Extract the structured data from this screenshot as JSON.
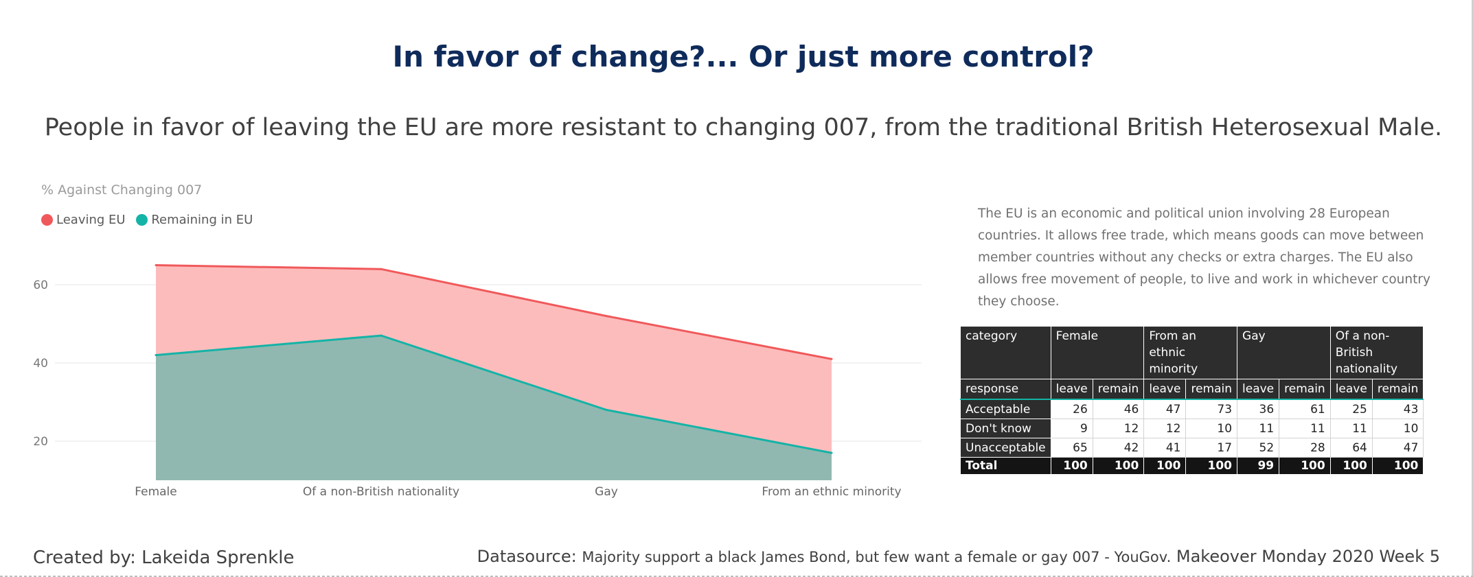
{
  "header": {
    "title": "In favor of change?... Or just more control?",
    "subtitle": "People in favor of leaving the EU are more resistant to changing 007, from the traditional British Heterosexual Male."
  },
  "chart_data": {
    "type": "area",
    "title": "% Against Changing 007",
    "categories": [
      "Female",
      "Of a non-British nationality",
      "Gay",
      "From an ethnic minority"
    ],
    "series": [
      {
        "name": "Leaving EU",
        "values": [
          65,
          64,
          52,
          41
        ],
        "color": "#f0595b",
        "fill": "#fdbcbc"
      },
      {
        "name": "Remaining in EU",
        "values": [
          42,
          47,
          28,
          17
        ],
        "color": "#14b3a7",
        "fill": "#91b8b0"
      }
    ],
    "yticks": [
      20,
      40,
      60
    ],
    "ylim": [
      10,
      72
    ],
    "grid": true,
    "legend": "top-left"
  },
  "description": "The EU is an economic and political union involving 28 European countries. It allows free trade, which means goods can move between member countries without any checks or extra charges. The EU also allows free movement of people, to live and work in whichever country they choose.",
  "table": {
    "category_label": "category",
    "response_label": "response",
    "groups": [
      "Female",
      "From an ethnic minority",
      "Gay",
      "Of a non-British nationality"
    ],
    "subcols": [
      "leave",
      "remain"
    ],
    "rows": [
      {
        "label": "Acceptable",
        "values": [
          "26",
          "46",
          "47",
          "73",
          "36",
          "61",
          "25",
          "43"
        ]
      },
      {
        "label": "Don't know",
        "values": [
          "9",
          "12",
          "12",
          "10",
          "11",
          "11",
          "11",
          "10"
        ]
      },
      {
        "label": "Unacceptable",
        "values": [
          "65",
          "42",
          "41",
          "17",
          "52",
          "28",
          "64",
          "47"
        ]
      }
    ],
    "total": {
      "label": "Total",
      "values": [
        "100",
        "100",
        "100",
        "100",
        "99",
        "100",
        "100",
        "100"
      ]
    }
  },
  "footer": {
    "created_by": "Created by: Lakeida Sprenkle",
    "datasource_label": "Datasource:",
    "datasource_text": "Majority support a black James Bond, but few want a female or gay 007 - YouGov.",
    "makeover": "Makeover Monday 2020 Week 5"
  }
}
